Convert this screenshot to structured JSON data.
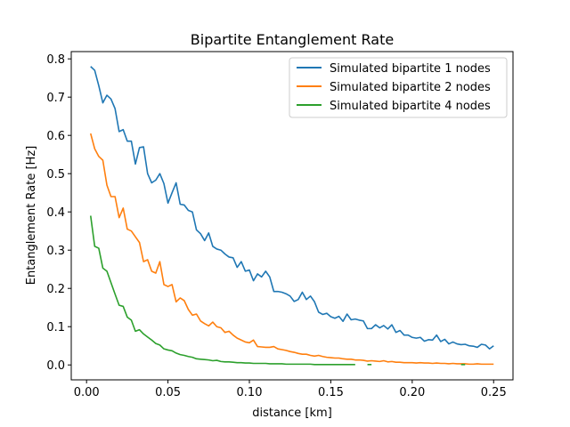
{
  "chart_data": {
    "type": "line",
    "title": "Bipartite Entanglement Rate",
    "xlabel": "distance [km]",
    "ylabel": "Entanglement Rate [Hz]",
    "xlim": [
      -0.0094,
      0.2619
    ],
    "ylim": [
      -0.039,
      0.819
    ],
    "xticks": [
      0.0,
      0.05,
      0.1,
      0.15,
      0.2,
      0.25
    ],
    "xtick_labels": [
      "0.00",
      "0.05",
      "0.10",
      "0.15",
      "0.20",
      "0.25"
    ],
    "yticks": [
      0.0,
      0.1,
      0.2,
      0.3,
      0.4,
      0.5,
      0.6,
      0.7,
      0.8
    ],
    "ytick_labels": [
      "0.0",
      "0.1",
      "0.2",
      "0.3",
      "0.4",
      "0.5",
      "0.6",
      "0.7",
      "0.8"
    ],
    "grid": false,
    "legend_position": "top-right",
    "series": [
      {
        "name": "Simulated bipartite 1 nodes",
        "color": "#1f77b4",
        "x": [
          0.0025,
          0.005,
          0.0075,
          0.01,
          0.0125,
          0.015,
          0.0175,
          0.02,
          0.0225,
          0.025,
          0.0275,
          0.03,
          0.0325,
          0.035,
          0.0375,
          0.04,
          0.0425,
          0.045,
          0.0475,
          0.05,
          0.0525,
          0.055,
          0.0575,
          0.06,
          0.0625,
          0.065,
          0.0675,
          0.07,
          0.0725,
          0.075,
          0.0775,
          0.08,
          0.0825,
          0.085,
          0.0875,
          0.09,
          0.0925,
          0.095,
          0.0975,
          0.1,
          0.1025,
          0.105,
          0.1075,
          0.11,
          0.1125,
          0.115,
          0.1175,
          0.12,
          0.1225,
          0.125,
          0.1275,
          0.13,
          0.1325,
          0.135,
          0.1375,
          0.14,
          0.1425,
          0.145,
          0.1475,
          0.15,
          0.1525,
          0.155,
          0.1575,
          0.16,
          0.1625,
          0.165,
          0.1675,
          0.17,
          0.1725,
          0.175,
          0.1775,
          0.18,
          0.1825,
          0.185,
          0.1875,
          0.19,
          0.1925,
          0.195,
          0.1975,
          0.2,
          0.2025,
          0.205,
          0.2075,
          0.21,
          0.2125,
          0.215,
          0.2175,
          0.22,
          0.2225,
          0.225,
          0.2275,
          0.23,
          0.2325,
          0.235,
          0.2375,
          0.24,
          0.2425,
          0.245,
          0.2475,
          0.25
        ],
        "y": [
          0.78,
          0.77,
          0.73,
          0.685,
          0.705,
          0.695,
          0.67,
          0.61,
          0.615,
          0.585,
          0.585,
          0.525,
          0.568,
          0.57,
          0.5,
          0.476,
          0.483,
          0.5,
          0.474,
          0.423,
          0.45,
          0.476,
          0.42,
          0.418,
          0.404,
          0.4,
          0.353,
          0.343,
          0.325,
          0.345,
          0.31,
          0.303,
          0.3,
          0.29,
          0.282,
          0.28,
          0.255,
          0.27,
          0.245,
          0.248,
          0.22,
          0.238,
          0.23,
          0.245,
          0.23,
          0.192,
          0.192,
          0.19,
          0.186,
          0.18,
          0.166,
          0.171,
          0.19,
          0.171,
          0.18,
          0.165,
          0.138,
          0.132,
          0.135,
          0.126,
          0.122,
          0.127,
          0.114,
          0.133,
          0.118,
          0.12,
          0.117,
          0.115,
          0.095,
          0.095,
          0.105,
          0.097,
          0.103,
          0.094,
          0.105,
          0.085,
          0.09,
          0.078,
          0.078,
          0.072,
          0.07,
          0.072,
          0.062,
          0.066,
          0.065,
          0.078,
          0.061,
          0.067,
          0.055,
          0.06,
          0.055,
          0.053,
          0.054,
          0.05,
          0.049,
          0.046,
          0.054,
          0.052,
          0.042,
          0.05
        ]
      },
      {
        "name": "Simulated bipartite 2 nodes",
        "color": "#ff7f0e",
        "x": [
          0.0025,
          0.005,
          0.0075,
          0.01,
          0.0125,
          0.015,
          0.0175,
          0.02,
          0.0225,
          0.025,
          0.0275,
          0.03,
          0.0325,
          0.035,
          0.0375,
          0.04,
          0.0425,
          0.045,
          0.0475,
          0.05,
          0.0525,
          0.055,
          0.0575,
          0.06,
          0.0625,
          0.065,
          0.0675,
          0.07,
          0.0725,
          0.075,
          0.0775,
          0.08,
          0.0825,
          0.085,
          0.0875,
          0.09,
          0.0925,
          0.095,
          0.0975,
          0.1,
          0.1025,
          0.105,
          0.1075,
          0.11,
          0.1125,
          0.115,
          0.1175,
          0.12,
          0.1225,
          0.125,
          0.1275,
          0.13,
          0.1325,
          0.135,
          0.1375,
          0.14,
          0.1425,
          0.145,
          0.1475,
          0.15,
          0.1525,
          0.155,
          0.1575,
          0.16,
          0.1625,
          0.165,
          0.1675,
          0.17,
          0.1725,
          0.175,
          0.1775,
          0.18,
          0.1825,
          0.185,
          0.1875,
          0.19,
          0.1925,
          0.195,
          0.1975,
          0.2,
          0.2025,
          0.205,
          0.2075,
          0.21,
          0.2125,
          0.215,
          0.2175,
          0.22,
          0.2225,
          0.225,
          0.2275,
          0.23,
          0.2325,
          0.235,
          0.2375,
          0.24,
          0.2425,
          0.245,
          0.2475,
          0.25
        ],
        "y": [
          0.605,
          0.565,
          0.545,
          0.535,
          0.47,
          0.44,
          0.44,
          0.385,
          0.41,
          0.355,
          0.35,
          0.335,
          0.32,
          0.27,
          0.275,
          0.245,
          0.24,
          0.27,
          0.21,
          0.205,
          0.21,
          0.165,
          0.175,
          0.168,
          0.145,
          0.13,
          0.133,
          0.115,
          0.108,
          0.102,
          0.112,
          0.1,
          0.097,
          0.085,
          0.088,
          0.078,
          0.07,
          0.065,
          0.06,
          0.058,
          0.065,
          0.048,
          0.047,
          0.046,
          0.046,
          0.048,
          0.042,
          0.04,
          0.038,
          0.035,
          0.033,
          0.03,
          0.028,
          0.028,
          0.025,
          0.023,
          0.025,
          0.022,
          0.02,
          0.019,
          0.018,
          0.018,
          0.016,
          0.015,
          0.015,
          0.013,
          0.013,
          0.012,
          0.01,
          0.011,
          0.01,
          0.009,
          0.011,
          0.008,
          0.009,
          0.007,
          0.007,
          0.006,
          0.006,
          0.006,
          0.005,
          0.006,
          0.005,
          0.005,
          0.004,
          0.005,
          0.004,
          0.004,
          0.003,
          0.004,
          0.003,
          0.003,
          0.003,
          0.002,
          0.002,
          0.003,
          0.002,
          0.002,
          0.002,
          0.002
        ]
      },
      {
        "name": "Simulated bipartite 4 nodes",
        "color": "#2ca02c",
        "x": [
          0.0025,
          0.005,
          0.0075,
          0.01,
          0.0125,
          0.015,
          0.0175,
          0.02,
          0.0225,
          0.025,
          0.0275,
          0.03,
          0.0325,
          0.035,
          0.0375,
          0.04,
          0.0425,
          0.045,
          0.0475,
          0.05,
          0.0525,
          0.055,
          0.0575,
          0.06,
          0.0625,
          0.065,
          0.0675,
          0.07,
          0.0725,
          0.075,
          0.0775,
          0.08,
          0.0825,
          0.085,
          0.0875,
          0.09,
          0.0925,
          0.095,
          0.0975,
          0.1,
          0.1025,
          0.105,
          0.1075,
          0.11,
          0.1125,
          0.115,
          0.1175,
          0.12,
          0.1225,
          0.125,
          0.1275,
          0.13,
          0.1325,
          0.135,
          0.1375,
          0.14,
          0.1425,
          0.145,
          0.1475,
          0.15,
          0.1525,
          0.155,
          0.1575,
          0.16,
          0.1625,
          0.165,
          null,
          0.1725,
          0.175,
          null,
          0.23,
          0.2325
        ],
        "y": [
          0.39,
          0.31,
          0.305,
          0.253,
          0.245,
          0.215,
          0.185,
          0.156,
          0.153,
          0.125,
          0.117,
          0.088,
          0.092,
          0.081,
          0.073,
          0.065,
          0.056,
          0.052,
          0.042,
          0.039,
          0.037,
          0.031,
          0.027,
          0.025,
          0.022,
          0.02,
          0.016,
          0.015,
          0.014,
          0.013,
          0.011,
          0.012,
          0.009,
          0.008,
          0.008,
          0.007,
          0.006,
          0.006,
          0.005,
          0.005,
          0.004,
          0.004,
          0.004,
          0.004,
          0.003,
          0.003,
          0.003,
          0.003,
          0.002,
          0.002,
          0.002,
          0.002,
          0.002,
          0.002,
          0.002,
          0.001,
          0.001,
          0.001,
          0.001,
          0.001,
          0.001,
          0.001,
          0.001,
          0.001,
          0.001,
          0.001,
          null,
          0.001,
          0.001,
          null,
          0.001,
          0.001
        ]
      }
    ]
  }
}
